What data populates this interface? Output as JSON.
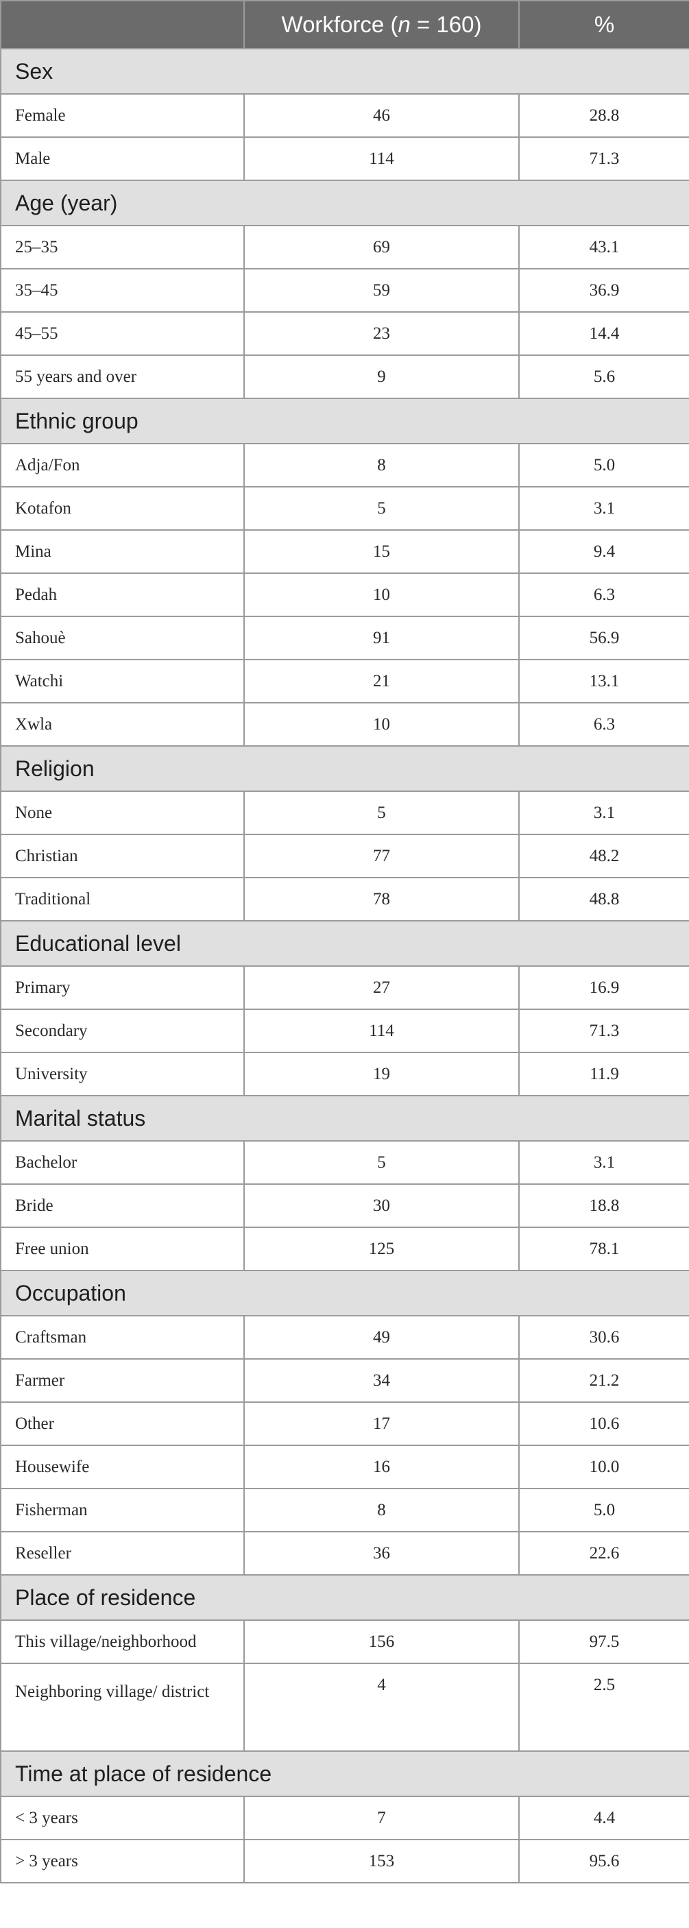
{
  "header": {
    "col1": "",
    "col2_prefix": "Workforce (",
    "col2_var": "n",
    "col2_suffix": " = 160)",
    "col3": "%"
  },
  "sections": [
    {
      "title": "Sex",
      "rows": [
        {
          "label": "Female",
          "n": "46",
          "pct": "28.8"
        },
        {
          "label": "Male",
          "n": "114",
          "pct": "71.3"
        }
      ]
    },
    {
      "title": "Age (year)",
      "rows": [
        {
          "label": "25–35",
          "n": "69",
          "pct": "43.1"
        },
        {
          "label": "35–45",
          "n": "59",
          "pct": "36.9"
        },
        {
          "label": "45–55",
          "n": "23",
          "pct": "14.4"
        },
        {
          "label": "55 years and over",
          "n": "9",
          "pct": "5.6"
        }
      ]
    },
    {
      "title": "Ethnic group",
      "rows": [
        {
          "label": "Adja/Fon",
          "n": "8",
          "pct": "5.0"
        },
        {
          "label": "Kotafon",
          "n": "5",
          "pct": "3.1"
        },
        {
          "label": "Mina",
          "n": "15",
          "pct": "9.4"
        },
        {
          "label": "Pedah",
          "n": "10",
          "pct": "6.3"
        },
        {
          "label": "Sahouè",
          "n": "91",
          "pct": "56.9"
        },
        {
          "label": "Watchi",
          "n": "21",
          "pct": "13.1"
        },
        {
          "label": "Xwla",
          "n": "10",
          "pct": "6.3"
        }
      ]
    },
    {
      "title": "Religion",
      "rows": [
        {
          "label": "None",
          "n": "5",
          "pct": "3.1"
        },
        {
          "label": "Christian",
          "n": "77",
          "pct": "48.2"
        },
        {
          "label": "Traditional",
          "n": "78",
          "pct": "48.8"
        }
      ]
    },
    {
      "title": "Educational level",
      "rows": [
        {
          "label": "Primary",
          "n": "27",
          "pct": "16.9"
        },
        {
          "label": "Secondary",
          "n": "114",
          "pct": "71.3"
        },
        {
          "label": "University",
          "n": "19",
          "pct": "11.9"
        }
      ]
    },
    {
      "title": "Marital status",
      "rows": [
        {
          "label": "Bachelor",
          "n": "5",
          "pct": "3.1"
        },
        {
          "label": "Bride",
          "n": "30",
          "pct": "18.8"
        },
        {
          "label": "Free union",
          "n": "125",
          "pct": "78.1"
        }
      ]
    },
    {
      "title": "Occupation",
      "rows": [
        {
          "label": "Craftsman",
          "n": "49",
          "pct": "30.6"
        },
        {
          "label": "Farmer",
          "n": "34",
          "pct": "21.2"
        },
        {
          "label": "Other",
          "n": "17",
          "pct": "10.6"
        },
        {
          "label": "Housewife",
          "n": "16",
          "pct": "10.0"
        },
        {
          "label": "Fisherman",
          "n": "8",
          "pct": "5.0"
        },
        {
          "label": "Reseller",
          "n": "36",
          "pct": "22.6"
        }
      ]
    },
    {
      "title": "Place of residence",
      "rows": [
        {
          "label": "This village/neighborhood",
          "n": "156",
          "pct": "97.5"
        },
        {
          "label": "Neighboring village/ district",
          "n": "4",
          "pct": "2.5",
          "tall": true
        }
      ]
    },
    {
      "title": "Time at place of residence",
      "rows": [
        {
          "label": "< 3 years",
          "n": "7",
          "pct": "4.4"
        },
        {
          "label": "> 3 years",
          "n": "153",
          "pct": "95.6"
        }
      ]
    }
  ]
}
